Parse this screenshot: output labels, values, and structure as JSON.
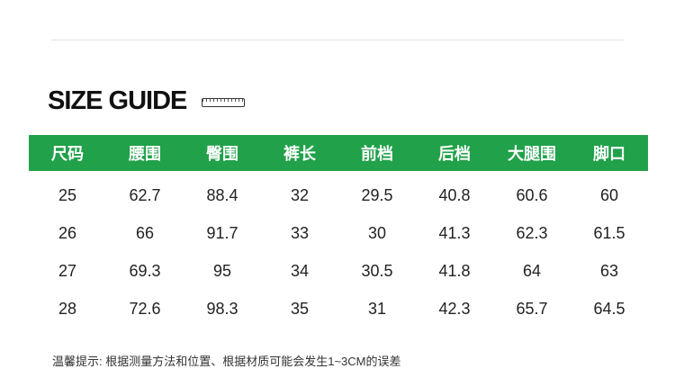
{
  "title": "SIZE GUIDE",
  "headers": [
    "尺码",
    "腰围",
    "臀围",
    "裤长",
    "前档",
    "后档",
    "大腿围",
    "脚口"
  ],
  "rows": [
    [
      "25",
      "62.7",
      "88.4",
      "32",
      "29.5",
      "40.8",
      "60.6",
      "60"
    ],
    [
      "26",
      "66",
      "91.7",
      "33",
      "30",
      "41.3",
      "62.3",
      "61.5"
    ],
    [
      "27",
      "69.3",
      "95",
      "34",
      "30.5",
      "41.8",
      "64",
      "63"
    ],
    [
      "28",
      "72.6",
      "98.3",
      "35",
      "31",
      "42.3",
      "65.7",
      "64.5"
    ]
  ],
  "note": "温馨提示: 根据测量方法和位置、根据材质可能会发生1~3CM的误差",
  "colors": {
    "header_bg": "#21a14a"
  },
  "icons": {
    "title_icon": "ruler-icon"
  }
}
